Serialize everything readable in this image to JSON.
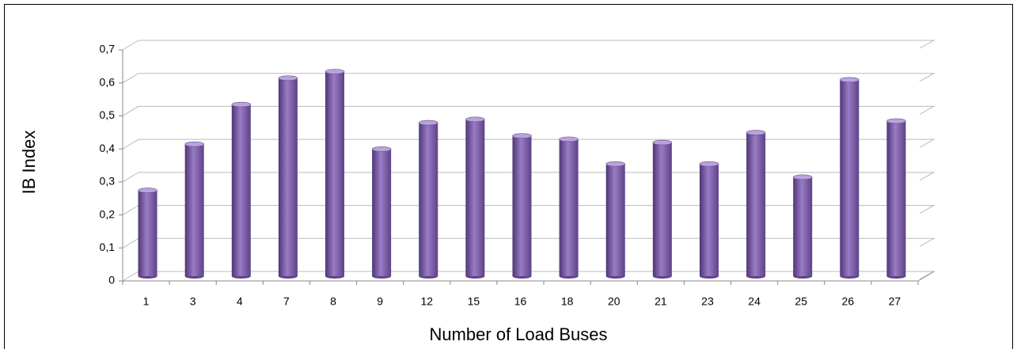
{
  "chart_data": {
    "type": "bar",
    "x_label": "Number of Load Buses",
    "y_label": "IB Index",
    "categories": [
      "1",
      "3",
      "4",
      "7",
      "8",
      "9",
      "12",
      "15",
      "16",
      "18",
      "20",
      "21",
      "23",
      "24",
      "25",
      "26",
      "27"
    ],
    "values": [
      0.26,
      0.4,
      0.52,
      0.6,
      0.62,
      0.385,
      0.465,
      0.475,
      0.425,
      0.415,
      0.34,
      0.405,
      0.34,
      0.435,
      0.3,
      0.595,
      0.47
    ],
    "color": "#8064a2",
    "ylim": [
      0,
      0.7
    ],
    "yticks": [
      0,
      {
        "value": 0.1,
        "label": "0,1"
      },
      {
        "value": 0.2,
        "label": "0,2"
      },
      {
        "value": 0.3,
        "label": "0,3"
      },
      {
        "value": 0.4,
        "label": "0,4"
      },
      {
        "value": 0.5,
        "label": "0,5"
      },
      {
        "value": 0.6,
        "label": "0,6"
      },
      {
        "value": 0.7,
        "label": "0,7"
      }
    ],
    "grid": true
  }
}
